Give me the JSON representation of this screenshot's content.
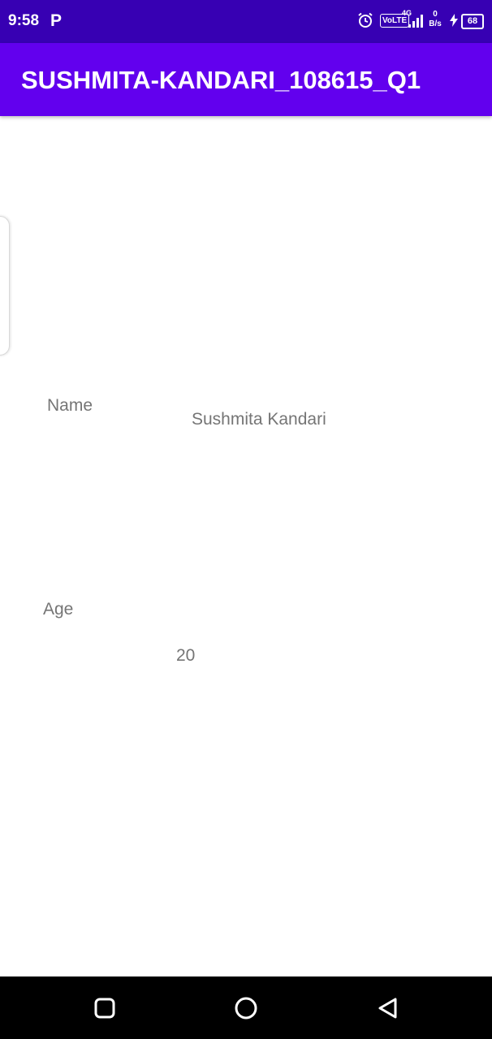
{
  "status_bar": {
    "time": "9:58",
    "app_badge": "P",
    "volte": "VoLTE",
    "network": "4G",
    "speed_value": "0",
    "speed_unit": "B/s",
    "battery": "68",
    "bg_color": "#3700b3"
  },
  "app_bar": {
    "title": "SUSHMITA-KANDARI_108615_Q1",
    "bg_color": "#6200ee"
  },
  "content": {
    "name_label": "Name",
    "name_value": "Sushmita Kandari",
    "age_label": "Age",
    "age_value": "20"
  },
  "nav_bar": {
    "icons": [
      "recents-icon",
      "home-icon",
      "back-icon"
    ]
  }
}
